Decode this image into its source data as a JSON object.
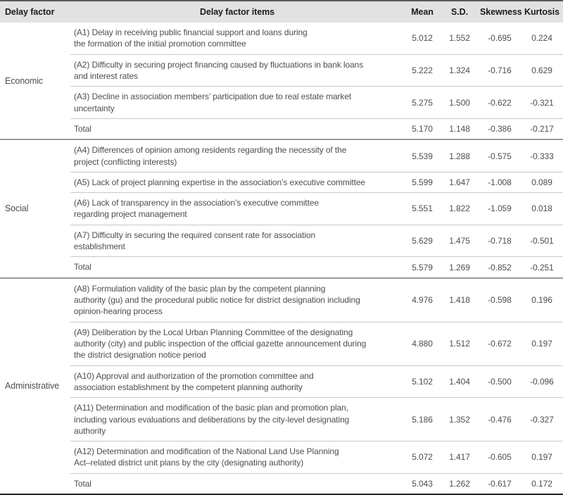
{
  "table": {
    "headers": {
      "group": "Delay factor",
      "items": "Delay factor items",
      "mean": "Mean",
      "sd": "S.D.",
      "skewness": "Skewness",
      "kurtosis": "Kurtosis"
    },
    "style": {
      "header_bg": "#e2e2e2",
      "header_text": "#1b1b1b",
      "body_text": "#4e4e4e",
      "row_divider": "#c9c9c9",
      "section_divider": "#9a9a9a",
      "top_border": "#5a5a5a",
      "bottom_border": "#222222"
    },
    "groups": [
      {
        "name": "Economic",
        "rows": [
          {
            "item": "(A1) Delay in receiving public financial support and loans during\nthe formation of the initial promotion committee",
            "mean": "5.012",
            "sd": "1.552",
            "skewness": "-0.695",
            "kurtosis": "0.224"
          },
          {
            "item": "(A2) Difficulty in securing project financing caused by fluctuations in bank loans\nand interest rates",
            "mean": "5.222",
            "sd": "1.324",
            "skewness": "-0.716",
            "kurtosis": "0.629"
          },
          {
            "item": "(A3) Decline in association members’ participation due to real estate market\nuncertainty",
            "mean": "5.275",
            "sd": "1.500",
            "skewness": "-0.622",
            "kurtosis": "-0.321"
          },
          {
            "item": "Total",
            "mean": "5.170",
            "sd": "1.148",
            "skewness": "-0.386",
            "kurtosis": "-0.217"
          }
        ]
      },
      {
        "name": "Social",
        "rows": [
          {
            "item": "(A4) Differences of opinion among residents regarding the necessity of the\nproject (conflicting interests)",
            "mean": "5.539",
            "sd": "1.288",
            "skewness": "-0.575",
            "kurtosis": "-0.333"
          },
          {
            "item": "(A5) Lack of project planning expertise in the association’s executive committee",
            "mean": "5.599",
            "sd": "1.647",
            "skewness": "-1.008",
            "kurtosis": "0.089"
          },
          {
            "item": "(A6) Lack of transparency in the association’s executive committee\nregarding project management",
            "mean": "5.551",
            "sd": "1.822",
            "skewness": "-1.059",
            "kurtosis": "0.018"
          },
          {
            "item": "(A7) Difficulty in securing the required consent rate for association\nestablishment",
            "mean": "5.629",
            "sd": "1.475",
            "skewness": "-0.718",
            "kurtosis": "-0.501"
          },
          {
            "item": "Total",
            "mean": "5.579",
            "sd": "1.269",
            "skewness": "-0.852",
            "kurtosis": "-0.251"
          }
        ]
      },
      {
        "name": "Administrative",
        "rows": [
          {
            "item": "(A8) Formulation validity of the basic plan by the competent planning\nauthority (gu) and the procedural public notice for district designation including\nopinion-hearing process",
            "mean": "4.976",
            "sd": "1.418",
            "skewness": "-0.598",
            "kurtosis": "0.196"
          },
          {
            "item": "(A9) Deliberation by the Local Urban Planning Committee of the designating\nauthority (city) and public inspection of the official gazette announcement during\nthe district designation notice period",
            "mean": "4.880",
            "sd": "1.512",
            "skewness": "-0.672",
            "kurtosis": "0.197"
          },
          {
            "item": "(A10) Approval and authorization of the promotion committee and\nassociation establishment by the competent planning authority",
            "mean": "5.102",
            "sd": "1.404",
            "skewness": "-0.500",
            "kurtosis": "-0.096"
          },
          {
            "item": "(A11) Determination and modification of the basic plan and promotion plan,\nincluding various evaluations and deliberations by the city-level designating\nauthority",
            "mean": "5.186",
            "sd": "1.352",
            "skewness": "-0.476",
            "kurtosis": "-0.327"
          },
          {
            "item": "(A12) Determination and modification of the National Land Use Planning\nAct–related district unit plans by the city (designating authority)",
            "mean": "5.072",
            "sd": "1.417",
            "skewness": "-0.605",
            "kurtosis": "0.197"
          },
          {
            "item": "Total",
            "mean": "5.043",
            "sd": "1.262",
            "skewness": "-0.617",
            "kurtosis": "0.172"
          }
        ]
      }
    ]
  }
}
